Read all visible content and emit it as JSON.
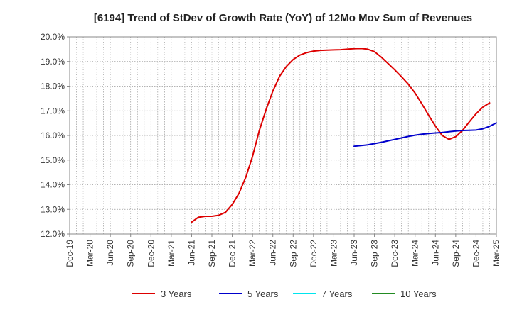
{
  "chart_data": {
    "type": "line",
    "title": "[6194]  Trend of StDev of Growth Rate (YoY) of 12Mo Mov Sum of Revenues",
    "xlabel": "",
    "ylabel": "",
    "y_unit_suffix": "%",
    "ylim": [
      12.0,
      20.0
    ],
    "y_ticks": [
      12.0,
      13.0,
      14.0,
      15.0,
      16.0,
      17.0,
      18.0,
      19.0,
      20.0
    ],
    "x_tick_labels": [
      "Dec-19",
      "Mar-20",
      "Jun-20",
      "Sep-20",
      "Dec-20",
      "Mar-21",
      "Jun-21",
      "Sep-21",
      "Dec-21",
      "Mar-22",
      "Jun-22",
      "Sep-22",
      "Dec-22",
      "Mar-23",
      "Jun-23",
      "Sep-23",
      "Dec-23",
      "Mar-24",
      "Jun-24",
      "Sep-24",
      "Dec-24",
      "Mar-25"
    ],
    "x_start": "2019-12",
    "x_months": 63,
    "grid": true,
    "legend_position": "bottom",
    "series": [
      {
        "name": "3 Years",
        "color": "#dd0000",
        "start_month_index": 18,
        "values": [
          12.48,
          12.68,
          12.72,
          12.72,
          12.76,
          12.88,
          13.2,
          13.65,
          14.3,
          15.15,
          16.2,
          17.05,
          17.8,
          18.4,
          18.8,
          19.08,
          19.26,
          19.36,
          19.42,
          19.45,
          19.46,
          19.47,
          19.48,
          19.5,
          19.52,
          19.53,
          19.5,
          19.4,
          19.18,
          18.92,
          18.66,
          18.38,
          18.08,
          17.72,
          17.28,
          16.82,
          16.38,
          16.0,
          15.84,
          15.95,
          16.2,
          16.55,
          16.88,
          17.15,
          17.32
        ]
      },
      {
        "name": "5 Years",
        "color": "#0000cc",
        "start_month_index": 42,
        "values": [
          15.56,
          15.59,
          15.62,
          15.67,
          15.72,
          15.78,
          15.84,
          15.9,
          15.96,
          16.01,
          16.05,
          16.08,
          16.1,
          16.12,
          16.15,
          16.18,
          16.2,
          16.21,
          16.22,
          16.27,
          16.37,
          16.51
        ]
      },
      {
        "name": "7 Years",
        "color": "#00e5ee",
        "start_month_index": 0,
        "values": []
      },
      {
        "name": "10 Years",
        "color": "#228b22",
        "start_month_index": 0,
        "values": []
      }
    ]
  }
}
